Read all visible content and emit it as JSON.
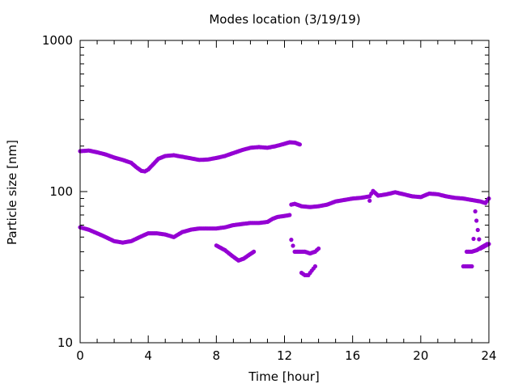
{
  "chart_data": {
    "type": "scatter",
    "title": "Modes location (3/19/19)",
    "xlabel": "Time [hour]",
    "ylabel": "Particle size [nm]",
    "xlim": [
      0,
      24
    ],
    "ylim": [
      10,
      1000
    ],
    "yscale": "log",
    "grid": false,
    "legend": "none",
    "marker_color": "#9400d3",
    "x_ticks": [
      0,
      4,
      8,
      12,
      16,
      20,
      24
    ],
    "x_tick_labels": [
      "0",
      "4",
      "8",
      "12",
      "16",
      "20",
      "24"
    ],
    "y_ticks": [
      10,
      100,
      1000
    ],
    "y_tick_labels": [
      "10",
      "100",
      "1000"
    ],
    "series": [
      {
        "x": [
          0.0,
          0.5,
          1.0,
          1.5,
          2.0,
          2.5,
          3.0,
          3.3,
          3.6,
          3.8,
          4.0,
          4.3,
          4.6,
          5.0,
          5.5,
          6.0,
          6.5,
          7.0,
          7.5,
          8.0,
          8.5,
          9.0,
          9.5,
          10.0,
          10.5,
          11.0,
          11.5,
          12.0,
          12.3,
          12.6,
          12.9
        ],
        "y": [
          185,
          187,
          182,
          176,
          168,
          162,
          155,
          145,
          137,
          136,
          140,
          152,
          165,
          172,
          174,
          170,
          166,
          162,
          163,
          167,
          172,
          180,
          188,
          195,
          197,
          195,
          200,
          207,
          212,
          211,
          205
        ]
      },
      {
        "x": [
          0.0,
          0.5,
          1.0,
          1.5,
          2.0,
          2.5,
          3.0,
          3.5,
          4.0,
          4.5,
          5.0,
          5.5,
          6.0,
          6.5,
          7.0,
          7.5,
          8.0,
          8.5,
          9.0,
          9.5,
          10.0,
          10.5,
          11.0,
          11.3,
          11.6,
          12.0,
          12.3
        ],
        "y": [
          58,
          56,
          53,
          50,
          47,
          46,
          47,
          50,
          53,
          53,
          52,
          50,
          54,
          56,
          57,
          57,
          57,
          58,
          60,
          61,
          62,
          62,
          63,
          66,
          68,
          69,
          70
        ]
      },
      {
        "x": [
          12.4,
          12.6,
          13.0,
          13.5,
          14.0,
          14.5,
          15.0,
          15.5,
          16.0,
          16.5,
          17.0,
          17.2,
          17.5,
          18.0,
          18.5,
          19.0,
          19.5,
          20.0,
          20.5,
          21.0,
          21.5,
          22.0,
          22.5,
          23.0,
          23.5,
          23.8,
          24.0
        ],
        "y": [
          82,
          83,
          80,
          79,
          80,
          82,
          86,
          88,
          90,
          91,
          93,
          101,
          94,
          96,
          99,
          96,
          93,
          92,
          97,
          96,
          93,
          91,
          90,
          88,
          86,
          84,
          90
        ]
      },
      {
        "x": [
          8.0,
          8.5,
          9.0,
          9.3,
          9.6,
          9.9,
          10.2
        ],
        "y": [
          44,
          41,
          37,
          35,
          36,
          38,
          40
        ]
      },
      {
        "x": [
          12.4,
          12.6,
          12.9,
          13.2,
          13.5,
          13.8,
          14.0
        ],
        "y": [
          48,
          40,
          40,
          40,
          39,
          40,
          42
        ]
      },
      {
        "x": [
          13.0,
          13.2,
          13.4,
          13.6,
          13.8
        ],
        "y": [
          29,
          28,
          28,
          30,
          32
        ]
      },
      {
        "x": [
          17.0,
          22.5,
          23.0,
          23.2,
          23.5,
          24.0
        ],
        "y": [
          87,
          32,
          32,
          74,
          42,
          45
        ]
      },
      {
        "x": [
          22.7,
          23.0,
          23.3,
          23.6,
          23.9
        ],
        "y": [
          40,
          40,
          41,
          43,
          45
        ]
      }
    ]
  }
}
